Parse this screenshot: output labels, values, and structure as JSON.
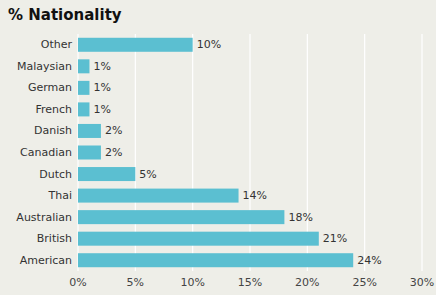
{
  "chart_data": {
    "type": "bar",
    "orientation": "horizontal",
    "title": "% Nationality",
    "categories": [
      "Other",
      "Malaysian",
      "German",
      "French",
      "Danish",
      "Canadian",
      "Dutch",
      "Thai",
      "Australian",
      "British",
      "American"
    ],
    "values": [
      10,
      1,
      1,
      1,
      2,
      2,
      5,
      14,
      18,
      21,
      24
    ],
    "value_labels": [
      "10%",
      "1%",
      "1%",
      "1%",
      "2%",
      "2%",
      "5%",
      "14%",
      "18%",
      "21%",
      "24%"
    ],
    "color": "#5bbfd1",
    "xlim": [
      0,
      30
    ],
    "xticks": [
      {
        "value": 0,
        "label": "0%"
      },
      {
        "value": 5,
        "label": "5%"
      },
      {
        "value": 10,
        "label": "10%"
      },
      {
        "value": 15,
        "label": "15%"
      },
      {
        "value": 20,
        "label": "20%"
      },
      {
        "value": 25,
        "label": "25%"
      },
      {
        "value": 30,
        "label": "30%"
      }
    ],
    "grid": true,
    "data_labels": true
  }
}
